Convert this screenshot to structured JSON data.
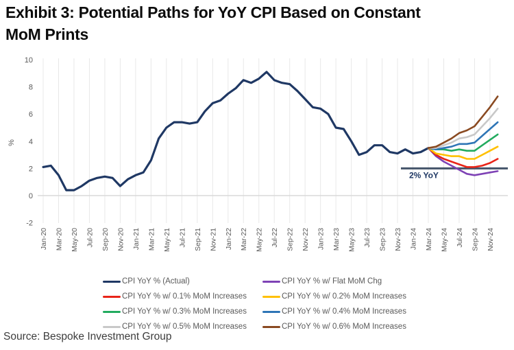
{
  "title": {
    "line1": "Exhibit 3: Potential Paths for YoY CPI Based on Constant",
    "line2": "MoM Prints"
  },
  "source": "Source: Bespoke Investment Group",
  "chart_data": {
    "type": "line",
    "title": "Exhibit 3: Potential Paths for YoY CPI Based on Constant MoM Prints",
    "xlabel": "",
    "ylabel": "%",
    "ylim": [
      -2,
      10
    ],
    "yticks": [
      10,
      8,
      6,
      4,
      2,
      0,
      -2
    ],
    "grid": "vertical-only",
    "legend_position": "bottom",
    "n_months": 60,
    "x_start": "Jan-20",
    "x_end": "Dec-24",
    "x_tick_labels": [
      "Jan-20",
      "Mar-20",
      "May-20",
      "Jul-20",
      "Sep-20",
      "Nov-20",
      "Jan-21",
      "Mar-21",
      "May-21",
      "Jul-21",
      "Sep-21",
      "Nov-21",
      "Jan-22",
      "Mar-22",
      "May-22",
      "Jul-22",
      "Sep-22",
      "Nov-22",
      "Jan-23",
      "Mar-23",
      "May-23",
      "Jul-23",
      "Sep-23",
      "Nov-23",
      "Jan-24",
      "Mar-24",
      "May-24",
      "Jul-24",
      "Sep-24",
      "Nov-24"
    ],
    "annotation": {
      "text": "2% YoY",
      "value": 2,
      "color": "#44546a"
    },
    "series": [
      {
        "name": "CPI YoY % (Actual)",
        "color": "#1f3864",
        "width": 3.2,
        "start_index": 0,
        "values": [
          2.1,
          2.2,
          1.5,
          0.4,
          0.4,
          0.7,
          1.1,
          1.3,
          1.4,
          1.3,
          0.7,
          1.2,
          1.5,
          1.7,
          2.6,
          4.2,
          5.0,
          5.4,
          5.4,
          5.3,
          5.4,
          6.2,
          6.8,
          7.0,
          7.5,
          7.9,
          8.5,
          8.3,
          8.6,
          9.1,
          8.5,
          8.3,
          8.2,
          7.7,
          7.1,
          6.5,
          6.4,
          6.0,
          5.0,
          4.9,
          4.0,
          3.0,
          3.2,
          3.7,
          3.7,
          3.2,
          3.1,
          3.4,
          3.1,
          3.2,
          3.5
        ]
      },
      {
        "name": "CPI YoY % w/ Flat MoM Chg",
        "color": "#7e42b5",
        "width": 2.6,
        "start_index": 50,
        "values": [
          3.5,
          2.9,
          2.5,
          2.2,
          1.9,
          1.6,
          1.5,
          1.6,
          1.7,
          1.8
        ]
      },
      {
        "name": "CPI YoY % w/ 0.1% MoM Increases",
        "color": "#e82418",
        "width": 2.6,
        "start_index": 50,
        "values": [
          3.5,
          3.0,
          2.7,
          2.5,
          2.3,
          2.1,
          2.1,
          2.2,
          2.4,
          2.7
        ]
      },
      {
        "name": "CPI YoY % w/ 0.2% MoM Increases",
        "color": "#ffc000",
        "width": 2.6,
        "start_index": 50,
        "values": [
          3.5,
          3.1,
          3.0,
          2.9,
          2.9,
          2.7,
          2.7,
          3.0,
          3.3,
          3.6
        ]
      },
      {
        "name": "CPI YoY % w/ 0.3% MoM Increases",
        "color": "#22ab5f",
        "width": 2.6,
        "start_index": 50,
        "values": [
          3.5,
          3.4,
          3.4,
          3.3,
          3.4,
          3.3,
          3.3,
          3.7,
          4.1,
          4.5
        ]
      },
      {
        "name": "CPI YoY % w/ 0.4% MoM Increases",
        "color": "#2e75b6",
        "width": 2.6,
        "start_index": 50,
        "values": [
          3.5,
          3.4,
          3.5,
          3.6,
          3.8,
          3.8,
          3.9,
          4.4,
          4.9,
          5.4
        ]
      },
      {
        "name": "CPI YoY % w/ 0.5% MoM Increases",
        "color": "#c8c8c8",
        "width": 2.6,
        "start_index": 50,
        "values": [
          3.5,
          3.5,
          3.7,
          3.9,
          4.2,
          4.3,
          4.5,
          5.1,
          5.7,
          6.4
        ]
      },
      {
        "name": "CPI YoY % w/ 0.6% MoM Increases",
        "color": "#8a4a21",
        "width": 2.6,
        "start_index": 50,
        "values": [
          3.5,
          3.6,
          3.9,
          4.2,
          4.6,
          4.8,
          5.1,
          5.8,
          6.5,
          7.3
        ]
      }
    ]
  }
}
